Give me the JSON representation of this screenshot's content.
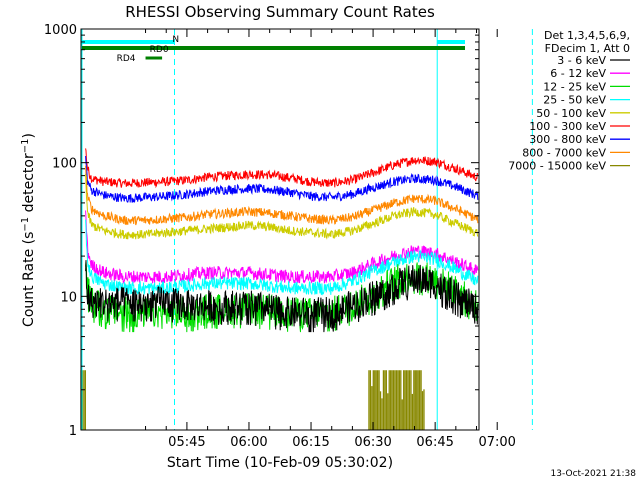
{
  "chart_data": {
    "type": "line",
    "title": "RHESSI Observing Summary Count Rates",
    "xlabel": "Start Time (10-Feb-09 05:30:02)",
    "ylabel_main": "Count Rate (s",
    "ylabel_sup1": "−1",
    "ylabel_mid": " detector",
    "ylabel_sup2": "−1",
    "ylabel_end": ")",
    "y_scale": "log",
    "ylim": [
      1,
      1000
    ],
    "xlim_minutes": [
      -10.6,
      85.6
    ],
    "x_ticks": [
      {
        "m": 15,
        "label": "05:45"
      },
      {
        "m": 30,
        "label": "06:00"
      },
      {
        "m": 45,
        "label": "06:15"
      },
      {
        "m": 60,
        "label": "06:30"
      },
      {
        "m": 75,
        "label": "06:45"
      },
      {
        "m": 90,
        "label": "07:00"
      }
    ],
    "y_ticks": [
      {
        "v": 1,
        "label": "1"
      },
      {
        "v": 10,
        "label": "10"
      },
      {
        "v": 100,
        "label": "100"
      },
      {
        "v": 1000,
        "label": "1000"
      }
    ],
    "legend_header": [
      "Det 1,3,4,5,6,9,",
      "FDecim 1, Att 0"
    ],
    "legend": [
      {
        "label": "3 - 6 keV",
        "color": "#000000"
      },
      {
        "label": "6 - 12 keV",
        "color": "#ff00ff"
      },
      {
        "label": "12 - 25 keV",
        "color": "#00dd00"
      },
      {
        "label": "25 - 50 keV",
        "color": "#00ffff"
      },
      {
        "label": "50 - 100 keV",
        "color": "#cccc00"
      },
      {
        "label": "100 - 300 keV",
        "color": "#ff0000"
      },
      {
        "label": "300 - 800 keV",
        "color": "#0000ff"
      },
      {
        "label": "800 - 7000 keV",
        "color": "#ff8800"
      },
      {
        "label": "7000 - 15000 keV",
        "color": "#888800"
      }
    ],
    "series": [
      {
        "color": "#ff0000",
        "points": [
          [
            -9.5,
            130
          ],
          [
            -9,
            90
          ],
          [
            -8,
            76
          ],
          [
            -5,
            72
          ],
          [
            0,
            70
          ],
          [
            5,
            71
          ],
          [
            10,
            72
          ],
          [
            15,
            74
          ],
          [
            20,
            78
          ],
          [
            25,
            80
          ],
          [
            30,
            82
          ],
          [
            35,
            81
          ],
          [
            40,
            77
          ],
          [
            45,
            72
          ],
          [
            50,
            70
          ],
          [
            55,
            74
          ],
          [
            60,
            84
          ],
          [
            65,
            96
          ],
          [
            70,
            105
          ],
          [
            75,
            102
          ],
          [
            80,
            90
          ],
          [
            85,
            78
          ],
          [
            90,
            70
          ],
          [
            95,
            68
          ],
          [
            99,
            63
          ]
        ]
      },
      {
        "color": "#0000ff",
        "points": [
          [
            -9.5,
            110
          ],
          [
            -9,
            72
          ],
          [
            -8,
            62
          ],
          [
            -5,
            57
          ],
          [
            0,
            54
          ],
          [
            5,
            55
          ],
          [
            10,
            56
          ],
          [
            15,
            58
          ],
          [
            20,
            61
          ],
          [
            25,
            63
          ],
          [
            30,
            64
          ],
          [
            35,
            63
          ],
          [
            40,
            60
          ],
          [
            45,
            56
          ],
          [
            50,
            55
          ],
          [
            55,
            58
          ],
          [
            60,
            65
          ],
          [
            65,
            72
          ],
          [
            70,
            76
          ],
          [
            75,
            74
          ],
          [
            80,
            66
          ],
          [
            85,
            57
          ],
          [
            90,
            51
          ],
          [
            95,
            50
          ],
          [
            99,
            47
          ]
        ]
      },
      {
        "color": "#ff8800",
        "points": [
          [
            -9.5,
            95
          ],
          [
            -9,
            55
          ],
          [
            -8,
            45
          ],
          [
            -5,
            40
          ],
          [
            0,
            37
          ],
          [
            5,
            37
          ],
          [
            10,
            38
          ],
          [
            15,
            39
          ],
          [
            20,
            41
          ],
          [
            25,
            42
          ],
          [
            30,
            43
          ],
          [
            35,
            42
          ],
          [
            40,
            40
          ],
          [
            45,
            38
          ],
          [
            50,
            37
          ],
          [
            55,
            39
          ],
          [
            60,
            44
          ],
          [
            65,
            50
          ],
          [
            70,
            54
          ],
          [
            75,
            52
          ],
          [
            80,
            45
          ],
          [
            85,
            38
          ],
          [
            90,
            34
          ],
          [
            95,
            33
          ],
          [
            99,
            32
          ]
        ]
      },
      {
        "color": "#cccc00",
        "points": [
          [
            -9.5,
            80
          ],
          [
            -9,
            42
          ],
          [
            -8,
            34
          ],
          [
            -5,
            31
          ],
          [
            0,
            29
          ],
          [
            5,
            29
          ],
          [
            10,
            30
          ],
          [
            15,
            31
          ],
          [
            20,
            32
          ],
          [
            25,
            33
          ],
          [
            30,
            34
          ],
          [
            35,
            33
          ],
          [
            40,
            31
          ],
          [
            45,
            30
          ],
          [
            50,
            29
          ],
          [
            55,
            31
          ],
          [
            60,
            35
          ],
          [
            65,
            40
          ],
          [
            70,
            43
          ],
          [
            75,
            41
          ],
          [
            80,
            35
          ],
          [
            85,
            30
          ],
          [
            90,
            27
          ],
          [
            95,
            26
          ],
          [
            99,
            26
          ]
        ]
      },
      {
        "color": "#ff00ff",
        "points": [
          [
            -9.5,
            45
          ],
          [
            -9,
            22
          ],
          [
            -8,
            17
          ],
          [
            -5,
            15
          ],
          [
            0,
            14
          ],
          [
            5,
            14
          ],
          [
            10,
            14
          ],
          [
            15,
            14.5
          ],
          [
            20,
            15
          ],
          [
            25,
            15
          ],
          [
            30,
            15
          ],
          [
            35,
            14.5
          ],
          [
            40,
            14
          ],
          [
            45,
            14
          ],
          [
            50,
            14
          ],
          [
            55,
            15
          ],
          [
            60,
            17.5
          ],
          [
            65,
            20
          ],
          [
            70,
            22
          ],
          [
            75,
            21
          ],
          [
            80,
            18
          ],
          [
            85,
            15.5
          ],
          [
            90,
            14
          ],
          [
            95,
            14
          ],
          [
            99,
            16
          ]
        ]
      },
      {
        "color": "#00ffff",
        "points": [
          [
            -9.5,
            38
          ],
          [
            -9,
            18
          ],
          [
            -8,
            14
          ],
          [
            -5,
            12.5
          ],
          [
            0,
            11.5
          ],
          [
            5,
            11.5
          ],
          [
            10,
            11.5
          ],
          [
            15,
            12
          ],
          [
            20,
            12.5
          ],
          [
            25,
            12.5
          ],
          [
            30,
            12.5
          ],
          [
            35,
            12
          ],
          [
            40,
            11.5
          ],
          [
            45,
            11.5
          ],
          [
            50,
            11.5
          ],
          [
            55,
            13
          ],
          [
            60,
            15.5
          ],
          [
            65,
            18
          ],
          [
            70,
            20
          ],
          [
            75,
            19
          ],
          [
            80,
            16
          ],
          [
            85,
            13
          ],
          [
            90,
            11.5
          ],
          [
            95,
            11
          ],
          [
            99,
            13
          ]
        ]
      },
      {
        "color": "#00dd00",
        "points": [
          [
            -9.5,
            22
          ],
          [
            -9,
            11
          ],
          [
            -8,
            9
          ],
          [
            -5,
            8
          ],
          [
            0,
            7.5
          ],
          [
            5,
            7.5
          ],
          [
            10,
            7.5
          ],
          [
            15,
            7.5
          ],
          [
            20,
            8
          ],
          [
            25,
            8
          ],
          [
            30,
            8
          ],
          [
            35,
            7.8
          ],
          [
            40,
            7.5
          ],
          [
            45,
            7.5
          ],
          [
            50,
            7.6
          ],
          [
            55,
            8.5
          ],
          [
            60,
            10.5
          ],
          [
            65,
            13
          ],
          [
            70,
            14.5
          ],
          [
            75,
            13.5
          ],
          [
            80,
            11
          ],
          [
            85,
            8.5
          ],
          [
            90,
            7.5
          ],
          [
            95,
            7
          ],
          [
            99,
            8.5
          ]
        ]
      },
      {
        "color": "#000000",
        "points": [
          [
            -9.5,
            18
          ],
          [
            -9,
            10
          ],
          [
            -8,
            9
          ],
          [
            -5,
            9
          ],
          [
            0,
            9
          ],
          [
            5,
            9
          ],
          [
            10,
            9
          ],
          [
            15,
            8.5
          ],
          [
            20,
            8.5
          ],
          [
            25,
            8.5
          ],
          [
            30,
            8.5
          ],
          [
            35,
            8
          ],
          [
            40,
            7.5
          ],
          [
            45,
            7.5
          ],
          [
            50,
            7.5
          ],
          [
            55,
            8.5
          ],
          [
            60,
            10
          ],
          [
            65,
            12
          ],
          [
            70,
            13.5
          ],
          [
            75,
            12.5
          ],
          [
            80,
            10
          ],
          [
            85,
            8
          ],
          [
            90,
            6.5
          ],
          [
            95,
            6
          ],
          [
            99,
            6
          ]
        ]
      }
    ],
    "state_bars": [
      {
        "label": "N",
        "color": "#00ffff",
        "segments": [
          [
            -10.6,
            12
          ],
          [
            75.5,
            98
          ]
        ]
      },
      {
        "label": "RD0",
        "color": "#008000",
        "segments": [
          [
            -10.6,
            98
          ]
        ]
      },
      {
        "label": "RD4",
        "color": "#008000",
        "segments": [
          [
            5,
            9
          ]
        ]
      }
    ],
    "shaded_bars": {
      "color": "#888800",
      "segments": [
        [
          -10.6,
          -9.4
        ],
        [
          59,
          72.5
        ]
      ],
      "top": 2.8
    },
    "solid_vlines": [
      -10.6,
      75.5
    ],
    "dashed_vlines": [
      12,
      98.5
    ],
    "timestamp": "13-Oct-2021 21:38"
  }
}
